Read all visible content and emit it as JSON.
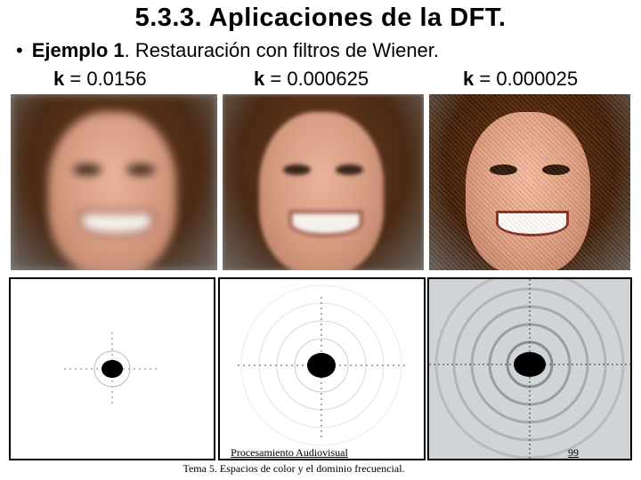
{
  "slide": {
    "title": "5.3.3. Aplicaciones de la DFT.",
    "bullet": {
      "symbol": "•",
      "label": "Ejemplo 1",
      "text": ". Restauración con filtros de Wiener."
    },
    "k_values": [
      {
        "prefix": "k",
        "value": "= 0.0156"
      },
      {
        "prefix": "k",
        "value": "= 0.000625"
      },
      {
        "prefix": "k",
        "value": "= 0.000025"
      }
    ],
    "footer": {
      "course": "Procesamiento Audiovisual",
      "topic": "Tema 5. Espacios de color y el dominio frecuencial.",
      "page": "99"
    }
  }
}
